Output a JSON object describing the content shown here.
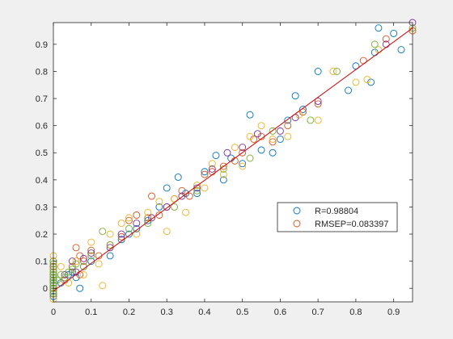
{
  "chart_data": {
    "type": "scatter",
    "xlim": [
      0,
      0.95
    ],
    "ylim": [
      -0.05,
      0.98
    ],
    "xticks": [
      "0",
      "0.1",
      "0.2",
      "0.3",
      "0.4",
      "0.5",
      "0.6",
      "0.7",
      "0.8",
      "0.9"
    ],
    "yticks": [
      "0",
      "0.1",
      "0.2",
      "0.3",
      "0.4",
      "0.5",
      "0.6",
      "0.7",
      "0.8",
      "0.9"
    ],
    "grid": false,
    "legend_position": "lower-right",
    "legend": [
      {
        "label": "R=0.98804",
        "color": "#0072bd"
      },
      {
        "label": "RMSEP=0.083397",
        "color": "#d95319"
      }
    ],
    "marker": "open-circle",
    "series": [
      {
        "color": "#0072bd",
        "x": [
          0,
          0,
          0,
          0,
          0,
          0,
          0,
          0,
          0,
          0,
          0.02,
          0.04,
          0.05,
          0.06,
          0.07,
          0.08,
          0.1,
          0.15,
          0.18,
          0.2,
          0.22,
          0.25,
          0.28,
          0.3,
          0.33,
          0.35,
          0.38,
          0.4,
          0.43,
          0.45,
          0.47,
          0.5,
          0.52,
          0.55,
          0.58,
          0.6,
          0.62,
          0.64,
          0.66,
          0.7,
          0.78,
          0.8,
          0.84,
          0.85,
          0.86,
          0.9,
          0.92
        ],
        "y": [
          0.08,
          0.06,
          0.04,
          0.02,
          0,
          -0.02,
          -0.03,
          0.05,
          0.03,
          0.01,
          0.02,
          0.05,
          0.06,
          0.04,
          0.0,
          0.08,
          0.1,
          0.12,
          0.18,
          0.2,
          0.22,
          0.25,
          0.3,
          0.37,
          0.41,
          0.35,
          0.35,
          0.43,
          0.49,
          0.4,
          0.48,
          0.46,
          0.64,
          0.51,
          0.5,
          0.55,
          0.62,
          0.71,
          0.66,
          0.8,
          0.73,
          0.82,
          0.76,
          0.87,
          0.96,
          0.94,
          0.88
        ]
      },
      {
        "color": "#d95319",
        "x": [
          0,
          0,
          0,
          0,
          0,
          0.03,
          0.05,
          0.06,
          0.07,
          0.07,
          0.08,
          0.1,
          0.12,
          0.15,
          0.18,
          0.2,
          0.22,
          0.25,
          0.26,
          0.28,
          0.3,
          0.32,
          0.34,
          0.36,
          0.4,
          0.42,
          0.45,
          0.48,
          0.5,
          0.53,
          0.55,
          0.58,
          0.62,
          0.66,
          0.7,
          0.82,
          0.88,
          0.95
        ],
        "y": [
          0.1,
          0.05,
          0.0,
          -0.02,
          0.08,
          0.03,
          0.08,
          0.15,
          0.12,
          0.05,
          0.1,
          0.14,
          0.12,
          0.16,
          0.19,
          0.25,
          0.27,
          0.26,
          0.34,
          0.27,
          0.3,
          0.33,
          0.36,
          0.34,
          0.42,
          0.43,
          0.45,
          0.47,
          0.5,
          0.55,
          0.56,
          0.54,
          0.6,
          0.65,
          0.68,
          0.84,
          0.92,
          0.95
        ]
      },
      {
        "color": "#edb120",
        "x": [
          0,
          0,
          0,
          0.02,
          0.04,
          0.06,
          0.08,
          0.1,
          0.12,
          0.13,
          0.15,
          0.18,
          0.2,
          0.22,
          0.25,
          0.28,
          0.3,
          0.32,
          0.35,
          0.38,
          0.4,
          0.42,
          0.45,
          0.48,
          0.5,
          0.52,
          0.55,
          0.58,
          0.62,
          0.65,
          0.7,
          0.74,
          0.8,
          0.83,
          0.86
        ],
        "y": [
          0.12,
          0.06,
          -0.04,
          0.08,
          0.02,
          0.1,
          0.05,
          0.17,
          0.09,
          0.01,
          0.2,
          0.24,
          0.26,
          0.2,
          0.28,
          0.32,
          0.21,
          0.33,
          0.28,
          0.38,
          0.37,
          0.46,
          0.42,
          0.52,
          0.45,
          0.56,
          0.6,
          0.55,
          0.56,
          0.64,
          0.62,
          0.8,
          0.76,
          0.77,
          0.88
        ]
      },
      {
        "color": "#7e2f8e",
        "x": [
          0,
          0,
          0.03,
          0.05,
          0.06,
          0.08,
          0.1,
          0.15,
          0.18,
          0.22,
          0.26,
          0.3,
          0.34,
          0.38,
          0.42,
          0.46,
          0.5,
          0.54,
          0.6,
          0.64,
          0.7,
          0.88,
          0.95
        ],
        "y": [
          0.03,
          -0.01,
          0.05,
          0.1,
          0.06,
          0.11,
          0.13,
          0.15,
          0.2,
          0.24,
          0.26,
          0.3,
          0.34,
          0.37,
          0.44,
          0.5,
          0.52,
          0.57,
          0.58,
          0.63,
          0.69,
          0.9,
          0.98
        ]
      },
      {
        "color": "#77ac30",
        "x": [
          0,
          0,
          0,
          0,
          0,
          0,
          0,
          0,
          0,
          0,
          0,
          0,
          0.01,
          0.02,
          0.03,
          0.04,
          0.05,
          0.06,
          0.08,
          0.1,
          0.13,
          0.15,
          0.2,
          0.25,
          0.32,
          0.38,
          0.45,
          0.52,
          0.58,
          0.68,
          0.75,
          0.85,
          0.95
        ],
        "y": [
          0.1,
          0.09,
          0.07,
          0.06,
          0.05,
          0.04,
          0.03,
          0.02,
          0.01,
          0.0,
          -0.01,
          -0.02,
          0.03,
          0.05,
          0.04,
          0.06,
          0.07,
          0.09,
          0.08,
          0.12,
          0.21,
          0.16,
          0.22,
          0.24,
          0.3,
          0.36,
          0.44,
          0.48,
          0.58,
          0.62,
          0.8,
          0.9,
          0.96
        ]
      }
    ],
    "fit_line": {
      "color": "#d40000",
      "x": [
        0,
        0.95
      ],
      "y": [
        -0.01,
        0.96
      ]
    }
  }
}
